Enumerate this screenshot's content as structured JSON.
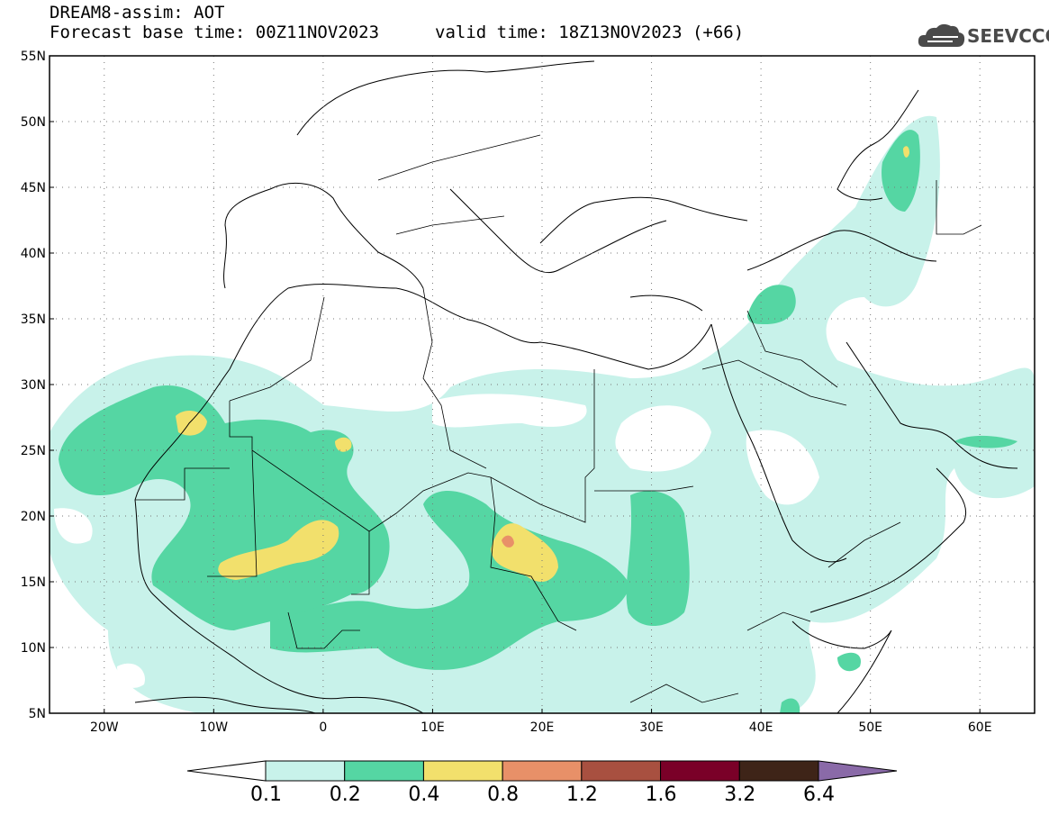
{
  "header": {
    "title_line1": "DREAM8-assim: AOT",
    "title_line2": "Forecast base time: 00Z11NOV2023",
    "valid_time": "valid time: 18Z13NOV2023 (+66)"
  },
  "logo": {
    "text": "SEEVCCC",
    "icon": "cloud-icon"
  },
  "map": {
    "lat_labels": [
      "55N",
      "50N",
      "45N",
      "40N",
      "35N",
      "30N",
      "25N",
      "20N",
      "15N",
      "10N",
      "5N"
    ],
    "lon_labels": [
      "20W",
      "10W",
      "0",
      "10E",
      "20E",
      "30E",
      "40E",
      "50E",
      "60E"
    ],
    "lon_range": [
      -25,
      65
    ],
    "lat_range": [
      5,
      55
    ],
    "grid": true
  },
  "colorbar": {
    "labels": [
      "0.1",
      "0.2",
      "0.4",
      "0.8",
      "1.2",
      "1.6",
      "3.2",
      "6.4"
    ],
    "colors": [
      "#ffffff",
      "#c8f2ea",
      "#55d6a3",
      "#f2e06c",
      "#e89068",
      "#a85040",
      "#7a0028",
      "#3e2418",
      "#8a6aa8"
    ]
  }
}
